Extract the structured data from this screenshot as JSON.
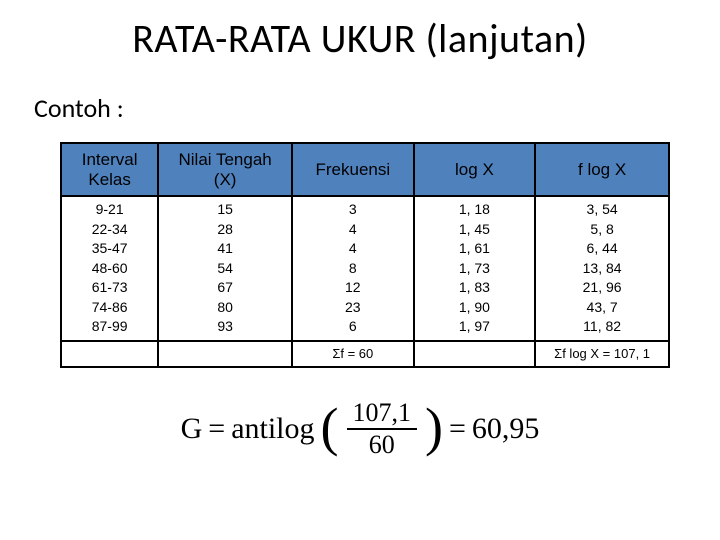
{
  "title": "RATA-RATA UKUR (lanjutan)",
  "subtitle": "Contoh :",
  "table": {
    "headers": {
      "interval": "Interval\nKelas",
      "nilai": "Nilai Tengah\n(X)",
      "frekuensi": "Frekuensi",
      "logx": "log X",
      "flogx": "f log X"
    },
    "rows": [
      {
        "interval": "9-21",
        "nilai": "15",
        "frek": "3",
        "logx": "1, 18",
        "flogx": "3, 54"
      },
      {
        "interval": "22-34",
        "nilai": "28",
        "frek": "4",
        "logx": "1, 45",
        "flogx": "5, 8"
      },
      {
        "interval": "35-47",
        "nilai": "41",
        "frek": "4",
        "logx": "1, 61",
        "flogx": "6, 44"
      },
      {
        "interval": "48-60",
        "nilai": "54",
        "frek": "8",
        "logx": "1, 73",
        "flogx": "13, 84"
      },
      {
        "interval": "61-73",
        "nilai": "67",
        "frek": "12",
        "logx": "1, 83",
        "flogx": "21, 96"
      },
      {
        "interval": "74-86",
        "nilai": "80",
        "frek": "23",
        "logx": "1, 90",
        "flogx": "43, 7"
      },
      {
        "interval": "87-99",
        "nilai": "93",
        "frek": "6",
        "logx": "1, 97",
        "flogx": "11, 82"
      }
    ],
    "footer": {
      "sum_f": "Σf = 60",
      "sum_flogx": "Σf log X = 107, 1"
    }
  },
  "formula": {
    "lhs": "G",
    "func": "antilog",
    "numerator": "107,1",
    "denominator": "60",
    "result": "60,95"
  }
}
